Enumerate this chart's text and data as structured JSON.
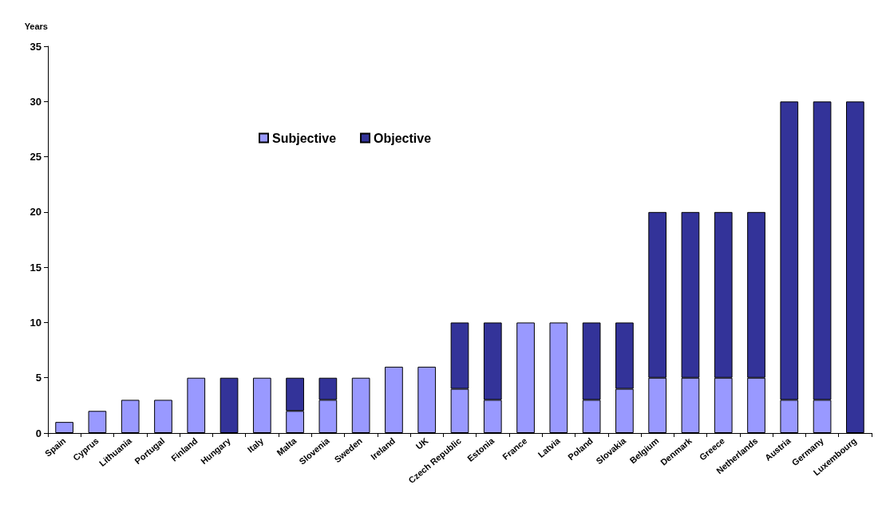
{
  "chart_data": {
    "type": "bar",
    "ylabel": "Years",
    "stacked": true,
    "categories": [
      "Spain",
      "Cyprus",
      "Lithuania",
      "Portugal",
      "Finland",
      "Hungary",
      "Italy",
      "Malta",
      "Slovenia",
      "Sweden",
      "Ireland",
      "UK",
      "Czech Republic",
      "Estonia",
      "France",
      "Latvia",
      "Poland",
      "Slovakia",
      "Belgium",
      "Denmark",
      "Greece",
      "Netherlands",
      "Austria",
      "Germany",
      "Luxembourg"
    ],
    "series": [
      {
        "name": "Subjective",
        "color": "#9999ff",
        "values": [
          1,
          2,
          3,
          3,
          5,
          0,
          5,
          2,
          3,
          5,
          6,
          6,
          4,
          3,
          10,
          10,
          3,
          4,
          5,
          5,
          5,
          5,
          3,
          3,
          0
        ]
      },
      {
        "name": "Objective",
        "color": "#333399",
        "values": [
          0,
          0,
          0,
          0,
          0,
          5,
          0,
          3,
          2,
          0,
          0,
          0,
          6,
          7,
          0,
          0,
          7,
          6,
          15,
          15,
          15,
          15,
          27,
          27,
          30
        ]
      }
    ],
    "ylim": [
      0,
      35
    ],
    "yticks": [
      0,
      5,
      10,
      15,
      20,
      25,
      30,
      35
    ],
    "grid": false,
    "legend": "top left"
  }
}
